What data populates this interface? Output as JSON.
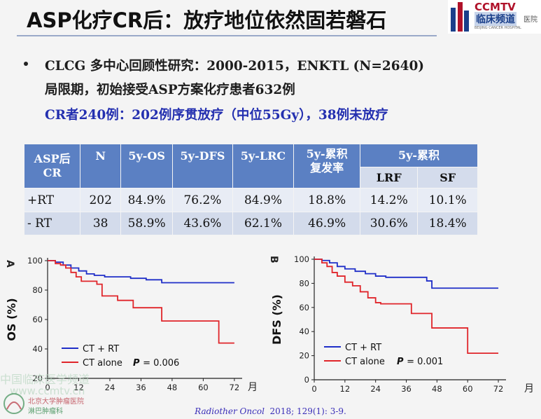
{
  "header": {
    "title": "ASP化疗CR后：放疗地位依然固若磐石",
    "logo_brand": "CCMTV",
    "logo_cn": "临床频道",
    "logo_cn_suffix": "医院",
    "logo_sub": "BEIJING CANCER HOSPITAL"
  },
  "bullets": {
    "line1": "CLCG 多中心回顾性研究：2000-2015，ENKTL (N=2640)",
    "line2": "局限期，初始接受ASP方案化疗患者632例",
    "line3": "CR者240例：202例序贯放疗（中位55Gy），38例未放疗"
  },
  "table": {
    "head": {
      "group": "ASP后\nCR",
      "n": "N",
      "os": "5y-OS",
      "dfs": "5y-DFS",
      "lrc": "5y-LRC",
      "cum_recur": "5y-累积复发率",
      "cum": "5y-累积",
      "lrf": "LRF",
      "sf": "SF"
    },
    "rows": [
      {
        "group": "+RT",
        "n": "202",
        "os": "84.9%",
        "dfs": "76.2%",
        "lrc": "84.9%",
        "cum_recur": "18.8%",
        "lrf": "14.2%",
        "sf": "10.1%"
      },
      {
        "group": "- RT",
        "n": "38",
        "os": "58.9%",
        "dfs": "43.6%",
        "lrc": "62.1%",
        "cum_recur": "46.9%",
        "lrf": "30.6%",
        "sf": "18.4%"
      }
    ]
  },
  "chart_data": [
    {
      "type": "line",
      "panel_label": "A",
      "ylabel": "OS (%)",
      "xlabel": "月",
      "x_ticks": [
        0,
        12,
        24,
        36,
        48,
        60,
        72
      ],
      "y_ticks": [
        20,
        40,
        60,
        80,
        100
      ],
      "xlim": [
        0,
        75
      ],
      "ylim": [
        20,
        100
      ],
      "p_label": "P",
      "p_value": "= 0.006",
      "series": [
        {
          "name": "CT + RT",
          "color": "#1f2ec8",
          "x": [
            0,
            3,
            6,
            9,
            12,
            15,
            18,
            22,
            26,
            32,
            38,
            44,
            50,
            60,
            72
          ],
          "y": [
            100,
            99,
            97,
            95,
            93,
            91,
            90,
            89,
            89,
            88,
            87,
            85,
            85,
            85,
            85
          ]
        },
        {
          "name": "CT alone",
          "color": "#e0252a",
          "x": [
            0,
            3,
            5,
            7,
            9,
            11,
            13,
            16,
            19,
            21,
            27,
            33,
            37,
            44,
            60,
            66,
            69,
            72
          ],
          "y": [
            100,
            98,
            97,
            95,
            92,
            89,
            86,
            86,
            84,
            76,
            73,
            68,
            68,
            59,
            59,
            44,
            44,
            44
          ]
        }
      ]
    },
    {
      "type": "line",
      "panel_label": "B",
      "ylabel": "DFS (%)",
      "xlabel": "月",
      "x_ticks": [
        0,
        12,
        24,
        36,
        48,
        60,
        72
      ],
      "y_ticks": [
        0,
        20,
        40,
        60,
        80,
        100
      ],
      "xlim": [
        0,
        75
      ],
      "ylim": [
        0,
        100
      ],
      "p_label": "P",
      "p_value": "= 0.001",
      "series": [
        {
          "name": "CT + RT",
          "color": "#1f2ec8",
          "x": [
            0,
            3,
            6,
            9,
            12,
            16,
            20,
            24,
            28,
            32,
            36,
            40,
            44,
            46,
            60,
            72
          ],
          "y": [
            100,
            99,
            97,
            94,
            92,
            90,
            88,
            86,
            85,
            85,
            85,
            85,
            82,
            76,
            76,
            76
          ]
        },
        {
          "name": "CT alone",
          "color": "#e0252a",
          "x": [
            0,
            3,
            5,
            7,
            9,
            12,
            15,
            18,
            21,
            24,
            26,
            30,
            36,
            38,
            44,
            46,
            56,
            60,
            66,
            72
          ],
          "y": [
            100,
            97,
            94,
            89,
            86,
            81,
            78,
            73,
            68,
            64,
            63,
            63,
            63,
            55,
            55,
            43,
            43,
            22,
            22,
            22
          ]
        }
      ]
    }
  ],
  "reference": {
    "journal": "Radiother Oncol",
    "citation": "2018; 129(1): 3-9."
  },
  "watermark": {
    "line1": "中国临床医学频道",
    "line2": "www.ccmtv.cn",
    "logo_text1": "北京大学肿瘤医院",
    "logo_text2": "淋巴肿瘤科"
  }
}
